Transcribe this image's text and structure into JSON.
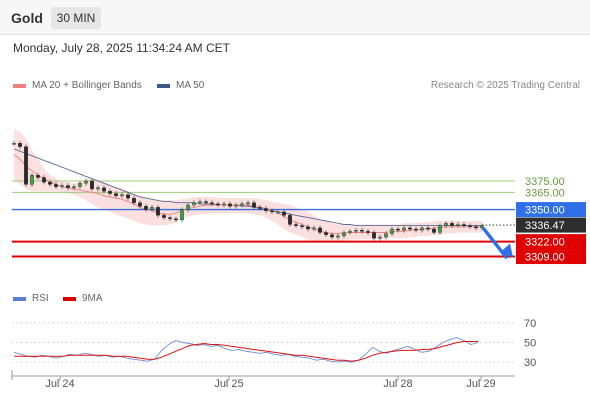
{
  "header": {
    "symbol": "Gold",
    "timeframe": "30 MIN"
  },
  "datetime": "Monday, July 28, 2025 11:34:24 AM CET",
  "legend": {
    "ma20": {
      "label": "MA 20 + Bollinger Bands",
      "color": "#f08080"
    },
    "ma50": {
      "label": "MA 50",
      "color": "#3d5a8a"
    },
    "credit": "Research © 2025 Trading Central"
  },
  "rsi_legend": {
    "rsi": {
      "label": "RSI",
      "color": "#5b7fd6"
    },
    "ma9": {
      "label": "9MA",
      "color": "#dd0000"
    }
  },
  "chart_data": [
    {
      "type": "line",
      "title": "Gold 30 MIN",
      "x_ticks": [
        "Jul 24",
        "Jul 25",
        "Jul 28",
        "Jul 29"
      ],
      "ylim": [
        3285,
        3430
      ],
      "price_points": [
        3408,
        3405,
        3372,
        3380,
        3378,
        3374,
        3372,
        3370,
        3371,
        3369,
        3370,
        3373,
        3375,
        3368,
        3369,
        3366,
        3364,
        3362,
        3363,
        3360,
        3356,
        3353,
        3350,
        3352,
        3345,
        3343,
        3342,
        3341,
        3350,
        3354,
        3356,
        3357,
        3356,
        3355,
        3354,
        3355,
        3353,
        3354,
        3355,
        3356,
        3352,
        3351,
        3349,
        3348,
        3348,
        3345,
        3337,
        3336,
        3335,
        3333,
        3334,
        3330,
        3328,
        3326,
        3327,
        3330,
        3331,
        3332,
        3331,
        3330,
        3325,
        3326,
        3329,
        3333,
        3332,
        3334,
        3333,
        3332,
        3334,
        3333,
        3330,
        3336,
        3338,
        3336,
        3337,
        3336,
        3335,
        3334,
        3336
      ],
      "ma20": [
        3398,
        3394,
        3388,
        3384,
        3380,
        3377,
        3374,
        3372,
        3370,
        3369,
        3368,
        3367,
        3366,
        3365,
        3364,
        3362,
        3361,
        3360,
        3359,
        3357,
        3355,
        3352,
        3350,
        3349,
        3347,
        3346,
        3346,
        3347,
        3349,
        3351,
        3352,
        3353,
        3354,
        3354,
        3354,
        3354,
        3354,
        3354,
        3354,
        3354,
        3353,
        3352,
        3351,
        3349,
        3347,
        3344,
        3341,
        3339,
        3337,
        3335,
        3333,
        3331,
        3330,
        3329,
        3329,
        3329,
        3330,
        3330,
        3330,
        3330,
        3330,
        3330,
        3330,
        3331,
        3331,
        3331,
        3332,
        3332,
        3333,
        3333,
        3334,
        3334,
        3335,
        3335,
        3335,
        3335,
        3335,
        3335,
        3335
      ],
      "bb_upper": [
        3420,
        3418,
        3412,
        3402,
        3394,
        3386,
        3380,
        3377,
        3375,
        3374,
        3373,
        3374,
        3376,
        3377,
        3376,
        3374,
        3372,
        3370,
        3368,
        3366,
        3364,
        3362,
        3360,
        3359,
        3358,
        3358,
        3358,
        3358,
        3359,
        3360,
        3361,
        3361,
        3361,
        3361,
        3360,
        3360,
        3360,
        3360,
        3360,
        3360,
        3360,
        3359,
        3358,
        3357,
        3356,
        3355,
        3354,
        3352,
        3350,
        3348,
        3345,
        3342,
        3340,
        3338,
        3337,
        3337,
        3337,
        3337,
        3337,
        3337,
        3337,
        3337,
        3337,
        3337,
        3337,
        3338,
        3338,
        3338,
        3339,
        3339,
        3340,
        3340,
        3340,
        3340,
        3340,
        3340,
        3340,
        3340,
        3340
      ],
      "bb_lower": [
        3376,
        3372,
        3368,
        3366,
        3366,
        3366,
        3366,
        3366,
        3365,
        3364,
        3363,
        3361,
        3358,
        3355,
        3352,
        3350,
        3348,
        3346,
        3344,
        3342,
        3340,
        3338,
        3337,
        3336,
        3336,
        3336,
        3337,
        3339,
        3342,
        3344,
        3345,
        3346,
        3346,
        3347,
        3347,
        3347,
        3347,
        3347,
        3347,
        3347,
        3346,
        3345,
        3343,
        3340,
        3337,
        3333,
        3330,
        3328,
        3326,
        3324,
        3323,
        3323,
        3323,
        3323,
        3323,
        3323,
        3324,
        3324,
        3324,
        3324,
        3324,
        3324,
        3325,
        3325,
        3325,
        3325,
        3326,
        3326,
        3327,
        3327,
        3328,
        3328,
        3329,
        3329,
        3330,
        3330,
        3330,
        3330,
        3330
      ],
      "ma50": [
        3403,
        3401,
        3399,
        3397,
        3395,
        3393,
        3391,
        3389,
        3387,
        3385,
        3383,
        3381,
        3379,
        3377,
        3375,
        3373,
        3371,
        3369,
        3367,
        3365,
        3363,
        3361,
        3360,
        3359,
        3358,
        3357,
        3357,
        3356,
        3356,
        3356,
        3356,
        3355,
        3355,
        3355,
        3354,
        3354,
        3354,
        3354,
        3353,
        3353,
        3352,
        3351,
        3350,
        3349,
        3348,
        3347,
        3346,
        3345,
        3344,
        3343,
        3342,
        3341,
        3340,
        3339,
        3338,
        3337,
        3337,
        3336,
        3336,
        3336,
        3336,
        3336,
        3336,
        3336,
        3336,
        3336,
        3336,
        3336,
        3336,
        3336,
        3336,
        3336,
        3336,
        3336,
        3336,
        3336,
        3336,
        3336,
        3336
      ],
      "levels": [
        {
          "label": "3375.00",
          "value": 3375,
          "kind": "resistance-green"
        },
        {
          "label": "3365.00",
          "value": 3365,
          "kind": "resistance-green"
        },
        {
          "label": "3350.00",
          "value": 3350,
          "kind": "pivot-blue"
        },
        {
          "label": "3336.47",
          "value": 3336.47,
          "kind": "last-price"
        },
        {
          "label": "3322.00",
          "value": 3322,
          "kind": "support-red"
        },
        {
          "label": "3309.00",
          "value": 3309,
          "kind": "support-red"
        }
      ]
    },
    {
      "type": "line",
      "title": "RSI",
      "ylim": [
        22,
        78
      ],
      "y_ticks": [
        "70",
        "50",
        "30"
      ],
      "rsi": [
        40,
        38,
        36,
        35,
        37,
        36,
        34,
        36,
        38,
        37,
        39,
        38,
        36,
        37,
        35,
        36,
        34,
        33,
        32,
        31,
        33,
        42,
        48,
        52,
        50,
        49,
        47,
        48,
        46,
        47,
        44,
        42,
        43,
        41,
        40,
        39,
        40,
        38,
        37,
        38,
        36,
        35,
        34,
        32,
        33,
        31,
        30,
        31,
        30,
        32,
        38,
        45,
        41,
        39,
        42,
        44,
        46,
        43,
        40,
        41,
        45,
        50,
        53,
        55,
        52,
        48,
        50
      ],
      "ma9": [
        36,
        36,
        36,
        36,
        36,
        36,
        36,
        36,
        37,
        37,
        37,
        37,
        37,
        37,
        36,
        36,
        36,
        35,
        34,
        33,
        33,
        35,
        38,
        41,
        44,
        47,
        48,
        49,
        48,
        48,
        47,
        46,
        45,
        44,
        43,
        42,
        41,
        40,
        39,
        38,
        37,
        37,
        36,
        35,
        34,
        33,
        32,
        32,
        31,
        32,
        34,
        37,
        39,
        40,
        41,
        42,
        42,
        42,
        43,
        43,
        44,
        46,
        48,
        50,
        51,
        51,
        51
      ]
    }
  ]
}
